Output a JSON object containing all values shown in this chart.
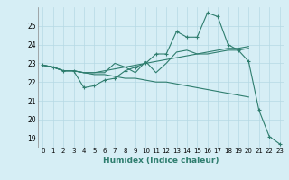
{
  "title": "",
  "xlabel": "Humidex (Indice chaleur)",
  "x": [
    0,
    1,
    2,
    3,
    4,
    5,
    6,
    7,
    8,
    9,
    10,
    11,
    12,
    13,
    14,
    15,
    16,
    17,
    18,
    19,
    20,
    21,
    22,
    23
  ],
  "line1": [
    22.9,
    22.8,
    22.6,
    22.6,
    21.7,
    21.8,
    22.1,
    22.2,
    22.6,
    22.8,
    23.0,
    23.5,
    23.5,
    24.7,
    24.4,
    24.4,
    25.7,
    25.5,
    24.0,
    23.7,
    23.1,
    20.5,
    19.1,
    18.7
  ],
  "line2": [
    22.9,
    22.8,
    22.6,
    22.6,
    22.5,
    22.5,
    22.5,
    23.0,
    22.8,
    22.5,
    23.1,
    22.5,
    23.0,
    23.6,
    23.7,
    23.5,
    23.6,
    23.7,
    23.8,
    23.8,
    23.9,
    null,
    null,
    null
  ],
  "line3": [
    22.9,
    22.8,
    22.6,
    22.6,
    22.5,
    22.5,
    22.6,
    22.7,
    22.8,
    22.9,
    23.0,
    23.1,
    23.2,
    23.3,
    23.4,
    23.5,
    23.5,
    23.6,
    23.7,
    23.7,
    23.8,
    null,
    null,
    null
  ],
  "line4": [
    22.9,
    22.8,
    22.6,
    22.6,
    22.5,
    22.4,
    22.4,
    22.3,
    22.2,
    22.2,
    22.1,
    22.0,
    22.0,
    21.9,
    21.8,
    21.7,
    21.6,
    21.5,
    21.4,
    21.3,
    21.2,
    null,
    null,
    null
  ],
  "ylim": [
    18.5,
    26.0
  ],
  "yticks": [
    19,
    20,
    21,
    22,
    23,
    24,
    25
  ],
  "line_color": "#2e7d6e",
  "bg_color": "#d6eef5",
  "grid_color": "#b5d9e4"
}
